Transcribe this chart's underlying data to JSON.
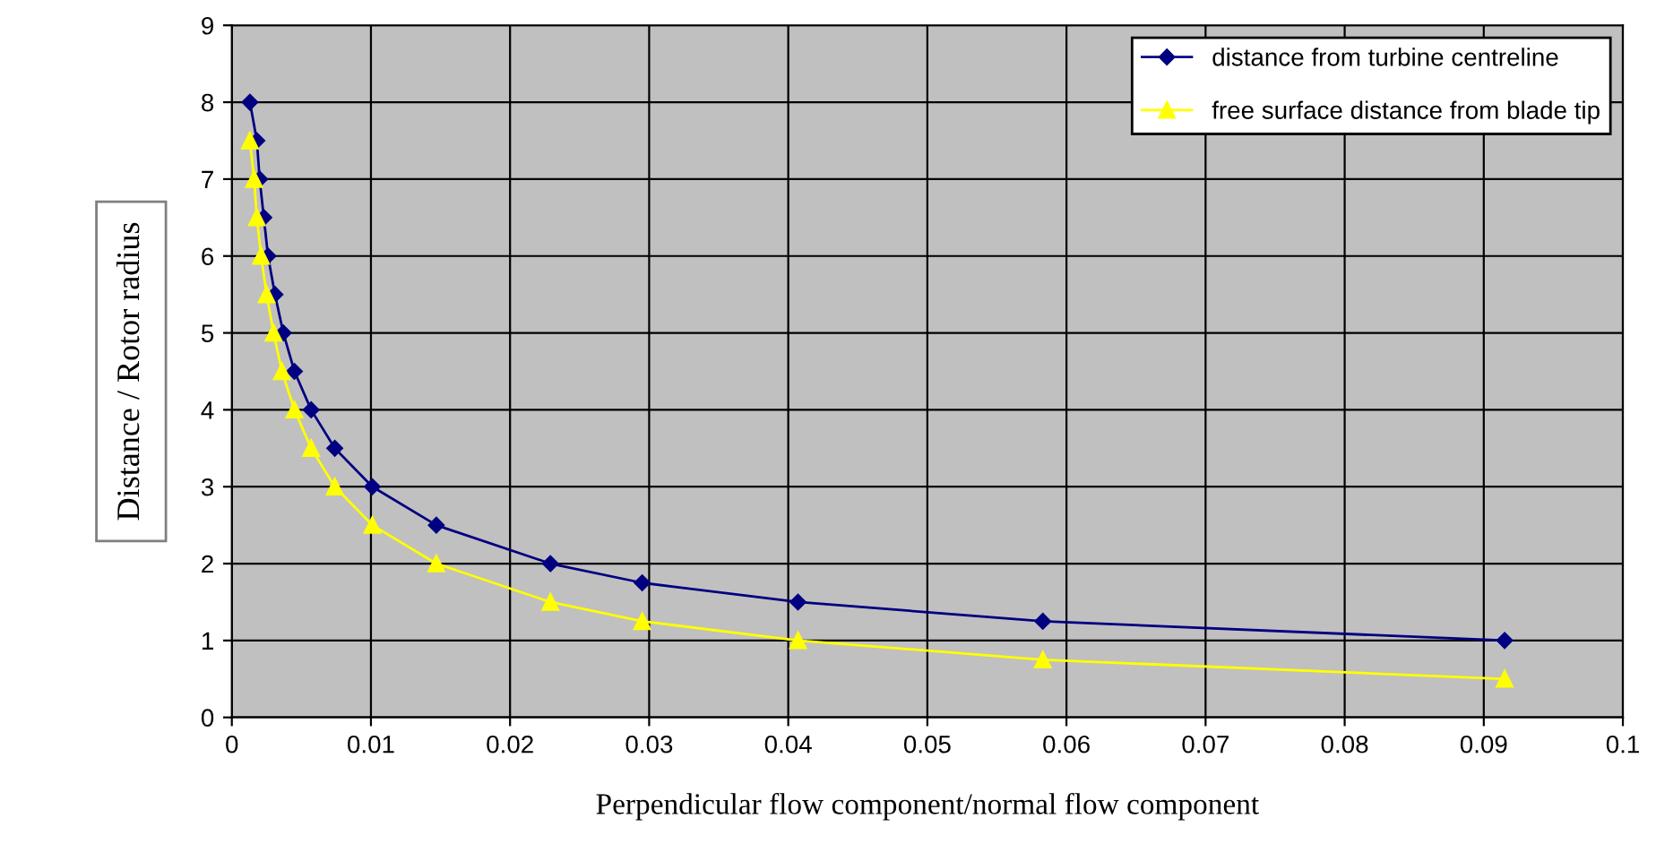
{
  "chart_data": {
    "type": "line",
    "xlabel": "Perpendicular flow component/normal flow component",
    "ylabel": "Distance / Rotor radius",
    "xlim": [
      0,
      0.1
    ],
    "xticks": [
      0,
      0.01,
      0.02,
      0.03,
      0.04,
      0.05,
      0.06,
      0.07,
      0.08,
      0.09,
      0.1
    ],
    "ylim": [
      0,
      9
    ],
    "yticks": [
      0,
      1,
      2,
      3,
      4,
      5,
      6,
      7,
      8,
      9
    ],
    "grid": true,
    "legend": "top right",
    "series": [
      {
        "name": "distance from turbine centreline",
        "color": "#000080",
        "marker": "diamond",
        "x": [
          0.0013,
          0.0018,
          0.002,
          0.0023,
          0.0026,
          0.0031,
          0.0037,
          0.0045,
          0.0057,
          0.0074,
          0.0101,
          0.0147,
          0.0229,
          0.0295,
          0.0407,
          0.0583,
          0.0915
        ],
        "values": [
          8,
          7.5,
          7,
          6.5,
          6,
          5.5,
          5,
          4.5,
          4,
          3.5,
          3,
          2.5,
          2,
          1.75,
          1.5,
          1.25,
          1
        ]
      },
      {
        "name": "free surface distance from blade tip",
        "color": "#ffff00",
        "marker": "triangle",
        "x": [
          0.0013,
          0.0016,
          0.0018,
          0.0021,
          0.0025,
          0.003,
          0.0036,
          0.0045,
          0.0057,
          0.0074,
          0.0101,
          0.0147,
          0.0229,
          0.0295,
          0.0407,
          0.0583,
          0.0915
        ],
        "values": [
          7.5,
          7,
          6.5,
          6,
          5.5,
          5,
          4.5,
          4,
          3.5,
          3,
          2.5,
          2,
          1.5,
          1.25,
          1,
          0.75,
          0.5
        ]
      }
    ]
  }
}
